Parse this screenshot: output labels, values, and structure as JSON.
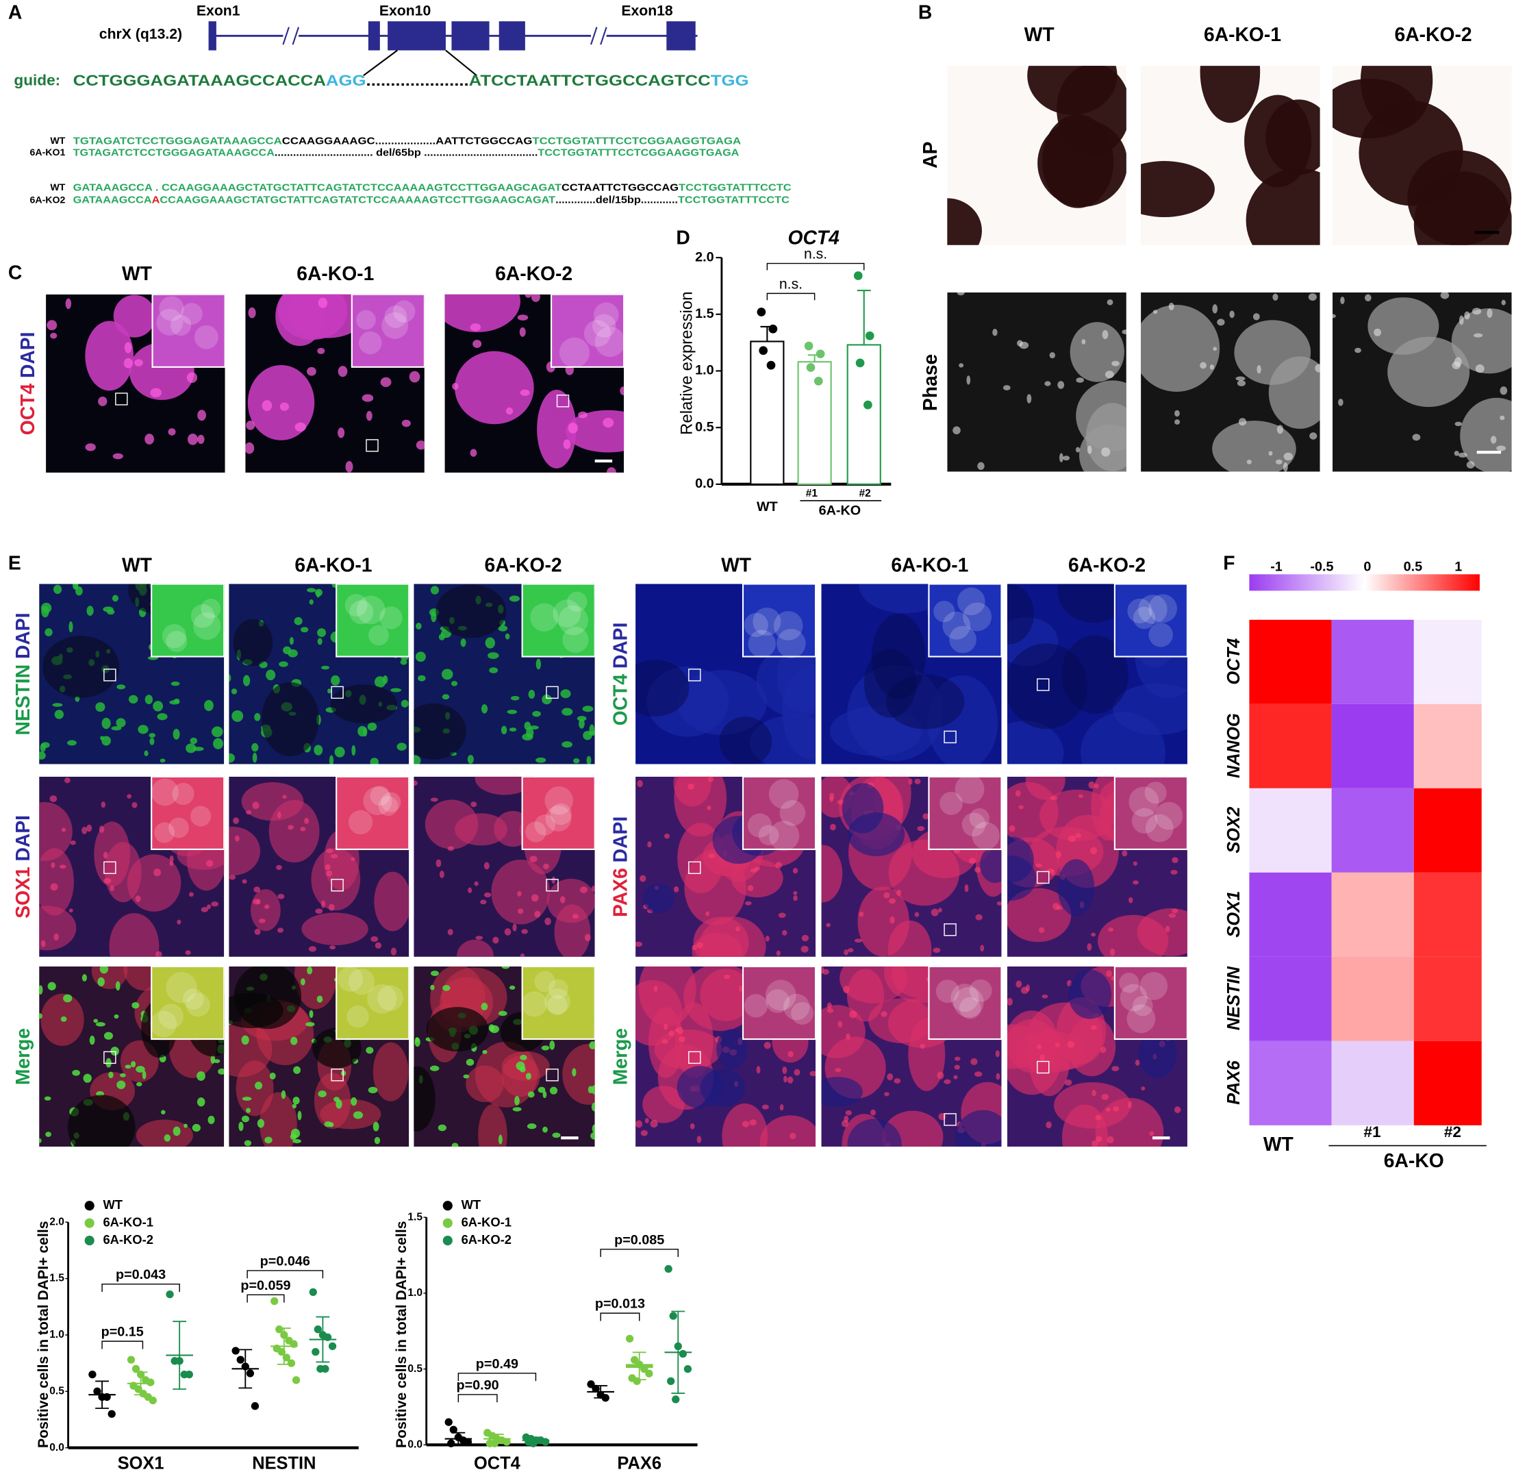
{
  "panel_a": {
    "label": "A",
    "exons": [
      "Exon1",
      "Exon10",
      "Exon18"
    ],
    "chromosome": "chrX (q13.2)",
    "guide_label": "guide:",
    "guide": [
      {
        "text": "CCTGGGAGATAAAGCCACCA",
        "color": "#1e7a3c"
      },
      {
        "text": "AGG",
        "color": "#3cb4e0"
      },
      {
        "text": ".....................",
        "color": "#000000"
      },
      {
        "text": "ATCCTAATTCTGGCCAGTCC",
        "color": "#1e7a3c"
      },
      {
        "text": "TGG",
        "color": "#3cb4e0"
      }
    ],
    "alignments": [
      {
        "name": "WT",
        "segments": [
          {
            "text": "TGTAGATCTCCTGGGAGATAAAGCCA",
            "color": "#2aa860"
          },
          {
            "text": "CCAAGGAAAGC",
            "color": "#000000"
          },
          {
            "text": "...................",
            "color": "#000000"
          },
          {
            "text": "AATTCTGGCCAG",
            "color": "#000000"
          },
          {
            "text": "TCCTGGTATTTCCTCGGAAGGTGAGA",
            "color": "#2aa860"
          }
        ]
      },
      {
        "name": "6A-KO1",
        "segments": [
          {
            "text": "TGTAGATCTCCTGGGAGATAAAGCCA",
            "color": "#2aa860"
          },
          {
            "text": "................................ del/65bp .....................................",
            "color": "#000000"
          },
          {
            "text": "TCCTGGTATTTCCTCGGAAGGTGAGA",
            "color": "#2aa860"
          }
        ]
      },
      {
        "name": "WT",
        "segments": [
          {
            "text": "GATAAAGCCA . CCAAGGAAAGCTATGCTATTCAGTATCTCCAAAAAGTCCTTGGAAGCAGAT",
            "color": "#2aa860"
          },
          {
            "text": "CCTAATTCTGGCCAG",
            "color": "#000000"
          },
          {
            "text": "TCCTGGTATTTCCTC",
            "color": "#2aa860"
          }
        ]
      },
      {
        "name": "6A-KO2",
        "segments": [
          {
            "text": "GATAAAGCCA",
            "color": "#2aa860"
          },
          {
            "text": "A",
            "color": "#e02020"
          },
          {
            "text": "CCAAGGAAAGCTATGCTATTCAGTATCTCCAAAAAGTCCTTGGAAGCAGAT",
            "color": "#2aa860"
          },
          {
            "text": ".............del/15bp............",
            "color": "#000000"
          },
          {
            "text": "TCCTGGTATTTCCTC",
            "color": "#2aa860"
          }
        ]
      }
    ]
  },
  "panel_b": {
    "label": "B",
    "columns": [
      "WT",
      "6A-KO-1",
      "6A-KO-2"
    ],
    "rows": [
      "AP",
      "Phase"
    ]
  },
  "panel_c": {
    "label": "C",
    "columns": [
      "WT",
      "6A-KO-1",
      "6A-KO-2"
    ],
    "stains": [
      "OCT4",
      "DAPI"
    ],
    "stain_colors": [
      "#e0203a",
      "#2a2aa0"
    ]
  },
  "panel_e": {
    "label": "E",
    "columns_left": [
      "WT",
      "6A-KO-1",
      "6A-KO-2"
    ],
    "columns_right": [
      "WT",
      "6A-KO-1",
      "6A-KO-2"
    ],
    "rows_left": [
      {
        "stains": [
          "NESTIN",
          "DAPI"
        ],
        "colors": [
          "#1a9a4a",
          "#2a2aa0"
        ]
      },
      {
        "stains": [
          "SOX1",
          "DAPI"
        ],
        "colors": [
          "#e0203a",
          "#2a2aa0"
        ]
      },
      {
        "stains": [
          "Merge"
        ],
        "colors": [
          "#1a9a4a"
        ]
      }
    ],
    "rows_right": [
      {
        "stains": [
          "OCT4",
          "DAPI"
        ],
        "colors": [
          "#1a9a4a",
          "#2a2aa0"
        ]
      },
      {
        "stains": [
          "PAX6",
          "DAPI"
        ],
        "colors": [
          "#e0203a",
          "#2a2aa0"
        ]
      },
      {
        "stains": [
          "Merge"
        ],
        "colors": [
          "#1a9a4a"
        ]
      }
    ]
  },
  "chart_data": [
    {
      "type": "bar",
      "panel": "D",
      "title": "OCT4",
      "y_label": "Relative expression",
      "categories": [
        "WT",
        "#1",
        "#2"
      ],
      "group_label": "6A-KO",
      "values": [
        1.26,
        1.08,
        1.23
      ],
      "errors": [
        0.13,
        0.06,
        0.48
      ],
      "points": [
        [
          1.52,
          1.37,
          1.18,
          1.05
        ],
        [
          1.22,
          1.15,
          1.03,
          0.91
        ],
        [
          1.84,
          1.31,
          1.07,
          0.7
        ]
      ],
      "colors": [
        "#000000",
        "#6cc36c",
        "#1f9a4a"
      ],
      "ylim": [
        0,
        2
      ],
      "yticks": [
        {
          "value": 0,
          "label": "0.0"
        },
        0.5,
        {
          "value": 1,
          "label": "1.0"
        },
        1.5,
        {
          "value": 2,
          "label": "2.0"
        }
      ],
      "annotations": [
        "n.s.",
        "n.s."
      ]
    },
    {
      "type": "heatmap",
      "panel": "F",
      "rows": [
        "OCT4",
        "NANOG",
        "SOX2",
        "SOX1",
        "NESTIN",
        "PAX6"
      ],
      "columns": [
        "WT",
        "#1",
        "#2"
      ],
      "group_label": "6A-KO",
      "values": [
        [
          1,
          -0.85,
          -0.1
        ],
        [
          0.85,
          -1,
          0.25
        ],
        [
          -0.15,
          -0.85,
          1
        ],
        [
          -0.95,
          0.3,
          0.8
        ],
        [
          -0.95,
          0.35,
          0.8
        ],
        [
          -0.75,
          -0.25,
          1
        ]
      ],
      "zlim": [
        -1,
        1
      ],
      "colorbar_ticks": [
        -1,
        -0.5,
        0,
        0.5,
        1
      ],
      "colorscale": [
        "#9b3cf0",
        "#ffffff",
        "#ff0000"
      ]
    },
    {
      "type": "dot",
      "y_label": "Positive cells in total DAPI+ cells",
      "categories": [
        "SOX1",
        "NESTIN"
      ],
      "ylim": [
        0,
        2
      ],
      "yticks": [
        {
          "value": 0,
          "label": "0.0"
        },
        0.5,
        {
          "value": 1,
          "label": "1.0"
        },
        1.5,
        {
          "value": 2,
          "label": "2.0"
        }
      ],
      "series": [
        {
          "name": "WT",
          "color": "#000000",
          "values": [
            [
              0.65,
              0.5,
              0.45,
              0.45,
              0.3
            ],
            [
              0.86,
              0.78,
              0.72,
              0.66,
              0.37
            ]
          ],
          "means": [
            0.47,
            0.7
          ],
          "errors": [
            0.12,
            0.17
          ]
        },
        {
          "name": "6A-KO-1",
          "color": "#7ac943",
          "values": [
            [
              0.78,
              0.7,
              0.65,
              0.6,
              0.58,
              0.55,
              0.52,
              0.48,
              0.45,
              0.42
            ],
            [
              1.3,
              1.05,
              1,
              0.95,
              0.92,
              0.88,
              0.85,
              0.8,
              0.75,
              0.6
            ]
          ],
          "means": [
            0.57,
            0.9
          ],
          "errors": [
            0.1,
            0.16
          ]
        },
        {
          "name": "6A-KO-2",
          "color": "#1a8c4e",
          "values": [
            [
              1.36,
              0.77,
              0.77,
              0.65,
              0.65
            ],
            [
              1.38,
              1.05,
              1,
              0.98,
              0.9,
              0.85,
              0.7,
              0.7
            ]
          ],
          "means": [
            0.82,
            0.96
          ],
          "errors": [
            0.3,
            0.2
          ]
        }
      ],
      "annotations": [
        "p=0.15",
        "p=0.043",
        "p=0.059",
        "p=0.046"
      ]
    },
    {
      "type": "dot",
      "y_label": "Positive cells in total DAPI+ cells",
      "categories": [
        "OCT4",
        "PAX6"
      ],
      "ylim": [
        0,
        1.5
      ],
      "yticks": [
        {
          "value": 0,
          "label": "0.0"
        },
        0.5,
        {
          "value": 1,
          "label": "1.0"
        },
        1.5
      ],
      "series": [
        {
          "name": "WT",
          "color": "#000000",
          "values": [
            [
              0.15,
              0.1,
              0.05,
              0.03,
              0.02,
              0.01
            ],
            [
              0.4,
              0.37,
              0.33,
              0.31
            ]
          ],
          "means": [
            0.04,
            0.35
          ],
          "errors": [
            0.04,
            0.04
          ]
        },
        {
          "name": "6A-KO-1",
          "color": "#7ac943",
          "values": [
            [
              0.08,
              0.06,
              0.04,
              0.03,
              0.02,
              0.01,
              0.01
            ],
            [
              0.7,
              0.56,
              0.53,
              0.5,
              0.47,
              0.44,
              0.42
            ]
          ],
          "means": [
            0.04,
            0.52
          ],
          "errors": [
            0.03,
            0.09
          ]
        },
        {
          "name": "6A-KO-2",
          "color": "#1a8c4e",
          "values": [
            [
              0.05,
              0.04,
              0.03,
              0.03,
              0.02,
              0.02,
              0.01
            ],
            [
              1.16,
              0.85,
              0.65,
              0.6,
              0.5,
              0.42,
              0.3
            ]
          ],
          "means": [
            0.03,
            0.61
          ],
          "errors": [
            0.02,
            0.27
          ]
        }
      ],
      "annotations": [
        "p=0.90",
        "p=0.49",
        "p=0.013",
        "p=0.085"
      ]
    }
  ]
}
